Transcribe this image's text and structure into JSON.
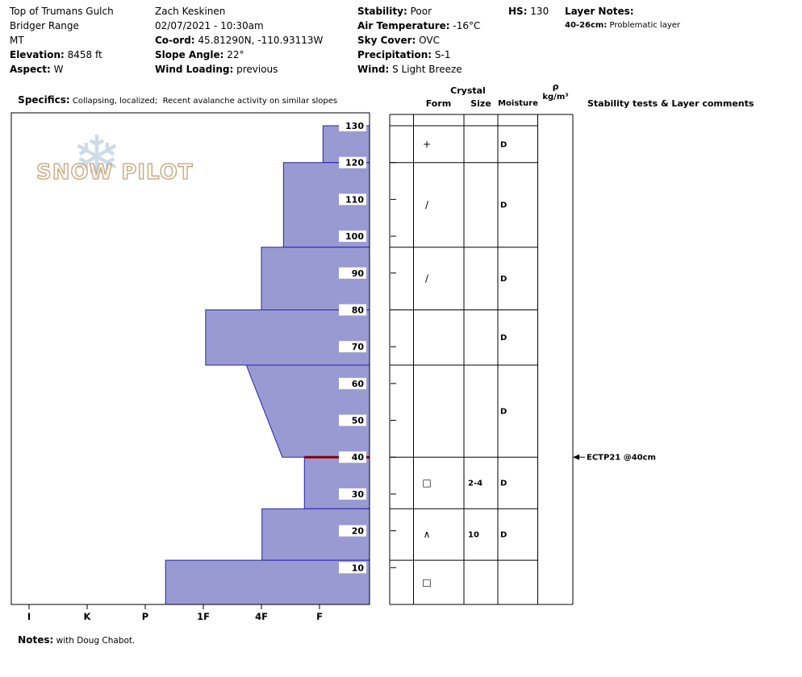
{
  "header": {
    "location": [
      {
        "label": "",
        "value": "Top of Trumans Gulch"
      },
      {
        "label": "",
        "value": "Bridger Range"
      },
      {
        "label": "",
        "value": "MT"
      },
      {
        "label": "Elevation:",
        "value": " 8458 ft"
      },
      {
        "label": "Aspect:",
        "value": " W"
      }
    ],
    "observer": [
      {
        "label": "",
        "value": "Zach Keskinen"
      },
      {
        "label": "",
        "value": "02/07/2021 - 10:30am"
      },
      {
        "label": "Co-ord:",
        "value": " 45.81290N, -110.93113W"
      },
      {
        "label": "Slope Angle:",
        "value": " 22°"
      },
      {
        "label": "Wind Loading:",
        "value": " previous"
      }
    ],
    "conditions": [
      {
        "label": "Stability:",
        "value": " Poor"
      },
      {
        "label": "Air Temperature:",
        "value": " -16°C"
      },
      {
        "label": "Sky Cover:",
        "value": " OVC"
      },
      {
        "label": "Precipitation:",
        "value": " S-1"
      },
      {
        "label": "Wind:",
        "value": " S Light Breeze"
      }
    ],
    "hs": {
      "label": "HS:",
      "value": " 130"
    },
    "layer_notes_label": "Layer Notes:",
    "layer_notes": [
      {
        "range": "40-26cm:",
        "note": " Problematic layer"
      }
    ],
    "specifics": {
      "label": "Specifics:",
      "value": " Collapsing, localized;  Recent avalanche activity on similar slopes"
    }
  },
  "watermark": {
    "flake_icon": "❄",
    "text": "SNOW PILOT"
  },
  "table": {
    "header_crystal": "Crystal",
    "header_form": "Form",
    "header_size": "Size",
    "header_moisture": "Moisture",
    "header_rho": "ρ",
    "header_rho_units": "kg/m³",
    "header_comments": "Stability tests & Layer comments"
  },
  "notes": {
    "label": "Notes:",
    "value": " with Doug Chabot."
  },
  "chart_data": {
    "type": "snow-profile-bar",
    "title": "Snow pit hand-hardness profile",
    "hs_cm": 130,
    "depth_axis_ticks_cm": [
      130,
      120,
      110,
      100,
      90,
      80,
      70,
      60,
      50,
      40,
      30,
      20,
      10
    ],
    "hardness_scale_labels": [
      "I",
      "K",
      "P",
      "1F",
      "4F",
      "F"
    ],
    "layers": [
      {
        "top_cm": 130,
        "bottom_cm": 120,
        "hardness": "F",
        "hardness_index_top": 5.06,
        "hardness_index_bottom": 5.06,
        "grain_form": "precipitation-particles",
        "grain_symbol": "+",
        "grain_size_mm": "",
        "moisture": "D"
      },
      {
        "top_cm": 120,
        "bottom_cm": 97,
        "hardness": "4F-F",
        "hardness_index_top": 4.38,
        "hardness_index_bottom": 4.38,
        "grain_form": "decomposing-fragments",
        "grain_symbol": "∕",
        "grain_size_mm": "",
        "moisture": "D"
      },
      {
        "top_cm": 97,
        "bottom_cm": 80,
        "hardness": "4F",
        "hardness_index_top": 4.0,
        "hardness_index_bottom": 4.0,
        "grain_form": "decomposing-fragments",
        "grain_symbol": "∕",
        "grain_size_mm": "",
        "moisture": "D"
      },
      {
        "top_cm": 80,
        "bottom_cm": 65,
        "hardness": "1F",
        "hardness_index_top": 3.04,
        "hardness_index_bottom": 3.04,
        "grain_form": "",
        "grain_symbol": "",
        "grain_size_mm": "",
        "moisture": "D"
      },
      {
        "top_cm": 65,
        "bottom_cm": 40,
        "hardness": "1F-4F",
        "hardness_index_top": 3.74,
        "hardness_index_bottom": 4.36,
        "grain_form": "",
        "grain_symbol": "",
        "grain_size_mm": "",
        "moisture": "D"
      },
      {
        "top_cm": 40,
        "bottom_cm": 26,
        "hardness": "4F-F",
        "hardness_index_top": 4.74,
        "hardness_index_bottom": 4.74,
        "grain_form": "faceted-crystals",
        "grain_symbol": "□",
        "grain_size_mm": "2-4",
        "moisture": "D"
      },
      {
        "top_cm": 26,
        "bottom_cm": 12,
        "hardness": "4F",
        "hardness_index_top": 4.01,
        "hardness_index_bottom": 4.01,
        "grain_form": "depth-hoar",
        "grain_symbol": "∧",
        "grain_size_mm": "10",
        "moisture": "D"
      },
      {
        "top_cm": 12,
        "bottom_cm": 0,
        "hardness": "P",
        "hardness_index_top": 2.35,
        "hardness_index_bottom": 2.35,
        "grain_form": "faceted-crystals",
        "grain_symbol": "□",
        "grain_size_mm": "",
        "moisture": ""
      }
    ],
    "problem_layer": {
      "depth_cm": 40,
      "hardness_index": 4.74
    },
    "stability_tests": [
      {
        "depth_cm": 40,
        "label": "ECTP21 @40cm"
      }
    ],
    "colors": {
      "layer_fill": "#9a9ad2",
      "layer_border": "#2323ad",
      "problem_line": "#8b0000",
      "grid": "#000000",
      "watermark_text_outline": "#c9a27a",
      "watermark_snowflake": "#b7cede"
    }
  }
}
